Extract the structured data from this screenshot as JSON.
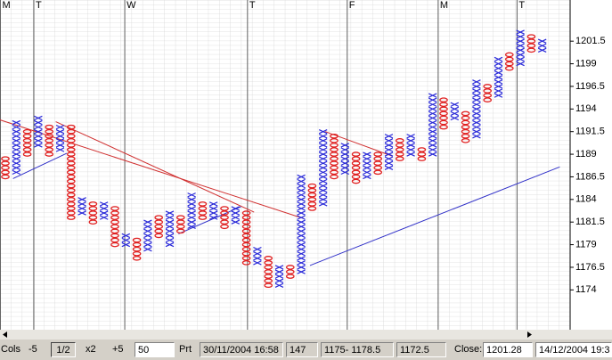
{
  "chart_data": {
    "type": "pointfigure",
    "box_size": 0.5,
    "ylim": [
      1169.6,
      1206.05
    ],
    "yticks": [
      1174,
      1176.5,
      1179,
      1181.5,
      1184,
      1186.5,
      1189,
      1191.5,
      1194,
      1196.5,
      1199,
      1201.5
    ],
    "x_color": "#2a2ad8",
    "o_color": "#e02020",
    "columns": [
      {
        "kind": "O",
        "low": 1186.5,
        "high": 1188.5
      },
      {
        "kind": "X",
        "low": 1187,
        "high": 1192.5
      },
      {
        "kind": "O",
        "low": 1189,
        "high": 1191.5
      },
      {
        "kind": "X",
        "low": 1190,
        "high": 1193
      },
      {
        "kind": "O",
        "low": 1189,
        "high": 1192
      },
      {
        "kind": "X",
        "low": 1189.5,
        "high": 1192
      },
      {
        "kind": "O",
        "low": 1182,
        "high": 1192
      },
      {
        "kind": "X",
        "low": 1182.5,
        "high": 1184
      },
      {
        "kind": "O",
        "low": 1181.5,
        "high": 1183.5
      },
      {
        "kind": "X",
        "low": 1182,
        "high": 1183.5
      },
      {
        "kind": "O",
        "low": 1179,
        "high": 1183
      },
      {
        "kind": "X",
        "low": 1179,
        "high": 1180
      },
      {
        "kind": "O",
        "low": 1177.5,
        "high": 1179.5
      },
      {
        "kind": "X",
        "low": 1178.5,
        "high": 1181.5
      },
      {
        "kind": "O",
        "low": 1180,
        "high": 1182
      },
      {
        "kind": "X",
        "low": 1179,
        "high": 1182.5
      },
      {
        "kind": "O",
        "low": 1180.5,
        "high": 1182
      },
      {
        "kind": "X",
        "low": 1181,
        "high": 1184.5
      },
      {
        "kind": "O",
        "low": 1182,
        "high": 1183.5
      },
      {
        "kind": "X",
        "low": 1182,
        "high": 1183.5
      },
      {
        "kind": "O",
        "low": 1181,
        "high": 1183
      },
      {
        "kind": "X",
        "low": 1181.5,
        "high": 1183
      },
      {
        "kind": "O",
        "low": 1177,
        "high": 1182.5
      },
      {
        "kind": "X",
        "low": 1177,
        "high": 1178.5
      },
      {
        "kind": "O",
        "low": 1174.5,
        "high": 1177.5
      },
      {
        "kind": "X",
        "low": 1174.5,
        "high": 1176.5
      },
      {
        "kind": "O",
        "low": 1175.5,
        "high": 1176.5
      },
      {
        "kind": "X",
        "low": 1176,
        "high": 1186.5
      },
      {
        "kind": "O",
        "low": 1183,
        "high": 1185.5
      },
      {
        "kind": "X",
        "low": 1183.5,
        "high": 1191.5
      },
      {
        "kind": "O",
        "low": 1186.5,
        "high": 1191
      },
      {
        "kind": "X",
        "low": 1187,
        "high": 1190
      },
      {
        "kind": "O",
        "low": 1186,
        "high": 1189
      },
      {
        "kind": "X",
        "low": 1186.5,
        "high": 1189
      },
      {
        "kind": "O",
        "low": 1187,
        "high": 1189
      },
      {
        "kind": "X",
        "low": 1187.5,
        "high": 1191
      },
      {
        "kind": "O",
        "low": 1188.5,
        "high": 1190.5
      },
      {
        "kind": "X",
        "low": 1189,
        "high": 1191
      },
      {
        "kind": "O",
        "low": 1188.5,
        "high": 1189.5
      },
      {
        "kind": "X",
        "low": 1189,
        "high": 1195.5
      },
      {
        "kind": "O",
        "low": 1192,
        "high": 1195
      },
      {
        "kind": "X",
        "low": 1193,
        "high": 1194.5
      },
      {
        "kind": "O",
        "low": 1190.5,
        "high": 1193.5
      },
      {
        "kind": "X",
        "low": 1191,
        "high": 1197
      },
      {
        "kind": "O",
        "low": 1195,
        "high": 1196.5
      },
      {
        "kind": "X",
        "low": 1195.5,
        "high": 1199.5
      },
      {
        "kind": "O",
        "low": 1198.5,
        "high": 1200
      },
      {
        "kind": "X",
        "low": 1199,
        "high": 1202.5
      },
      {
        "kind": "O",
        "low": 1200.5,
        "high": 1202
      },
      {
        "kind": "X",
        "low": 1200.5,
        "high": 1201.5
      }
    ],
    "trendlines": [
      {
        "color": "#d03030",
        "from": [
          -0.5,
          1192.8
        ],
        "to": [
          27.2,
          1181.9
        ]
      },
      {
        "color": "#d03030",
        "from": [
          4.6,
          1192.6
        ],
        "to": [
          22.7,
          1182.6
        ]
      },
      {
        "color": "#d03030",
        "from": [
          29.2,
          1191.5
        ],
        "to": [
          35.3,
          1188.8
        ]
      },
      {
        "color": "#3030c8",
        "from": [
          0.7,
          1186.3
        ],
        "to": [
          5.6,
          1189.1
        ]
      },
      {
        "color": "#3030c8",
        "from": [
          15.8,
          1180.2
        ],
        "to": [
          21.5,
          1183.2
        ]
      },
      {
        "color": "#3030c8",
        "from": [
          27.8,
          1176.7
        ],
        "to": [
          50.6,
          1187.6
        ]
      }
    ],
    "date_markers": [
      {
        "label": "M",
        "col": -0.45
      },
      {
        "label": "T",
        "col": 2.6
      },
      {
        "label": "W",
        "col": 10.9
      },
      {
        "label": "T",
        "col": 22.1
      },
      {
        "label": "F",
        "col": 31.2
      },
      {
        "label": "M",
        "col": 39.5
      },
      {
        "label": "T",
        "col": 46.7
      }
    ]
  },
  "toolbar": {
    "cols_label": "Cols",
    "buttons": [
      "-5",
      "1/2",
      "x2",
      "+5"
    ],
    "cols_input": "50",
    "print": "Prt",
    "fields": [
      "30/11/2004 16:58",
      "147",
      "1175- 1178.5",
      "1172.5"
    ],
    "close_label": "Close:",
    "close_value": "1201.28",
    "date": "14/12/2004 19:3"
  }
}
